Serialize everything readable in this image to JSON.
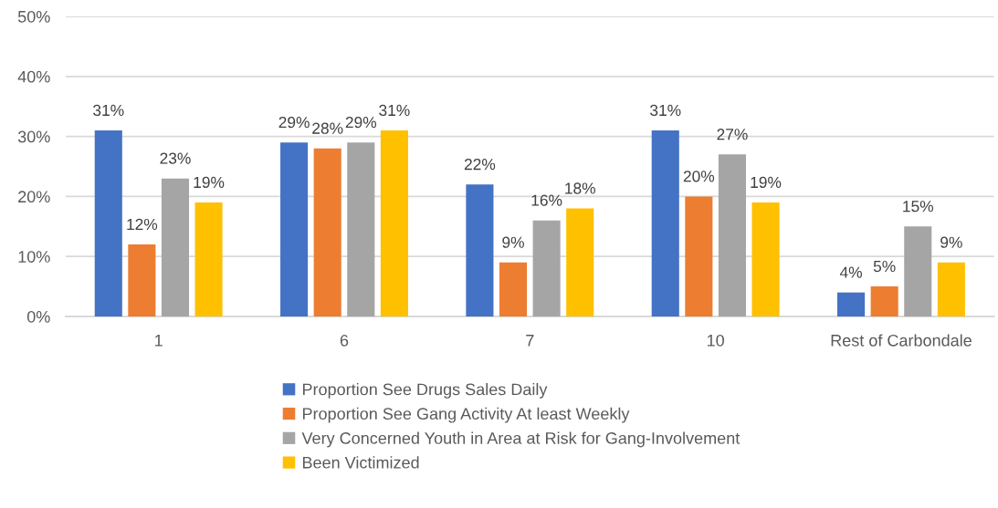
{
  "chart_data": {
    "type": "bar",
    "categories": [
      "1",
      "6",
      "7",
      "10",
      "Rest of Carbondale"
    ],
    "series": [
      {
        "name": "Proportion See Drugs Sales Daily",
        "color": "#4472c4",
        "values": [
          31,
          29,
          22,
          31,
          4
        ],
        "value_labels": [
          "31%",
          "29%",
          "22%",
          "31%",
          "4%"
        ]
      },
      {
        "name": "Proportion See Gang Activity At least Weekly",
        "color": "#ed7d31",
        "values": [
          12,
          28,
          9,
          20,
          5
        ],
        "value_labels": [
          "12%",
          "28%",
          "9%",
          "20%",
          "5%"
        ]
      },
      {
        "name": "Very Concerned Youth in Area at Risk for Gang-Involvement",
        "color": "#a5a5a5",
        "values": [
          23,
          29,
          16,
          27,
          15
        ],
        "value_labels": [
          "23%",
          "29%",
          "16%",
          "27%",
          "15%"
        ]
      },
      {
        "name": "Been Victimized",
        "color": "#ffc000",
        "values": [
          19,
          31,
          18,
          19,
          9
        ],
        "value_labels": [
          "19%",
          "31%",
          "18%",
          "19%",
          "9%"
        ]
      }
    ],
    "ylim": [
      0,
      50
    ],
    "yticks": [
      {
        "value": 0,
        "label": "0%"
      },
      {
        "value": 10,
        "label": "10%"
      },
      {
        "value": 20,
        "label": "20%"
      },
      {
        "value": 30,
        "label": "30%"
      },
      {
        "value": 40,
        "label": "40%"
      },
      {
        "value": 50,
        "label": "50%"
      }
    ],
    "grid": "y",
    "legend": "bottom"
  }
}
